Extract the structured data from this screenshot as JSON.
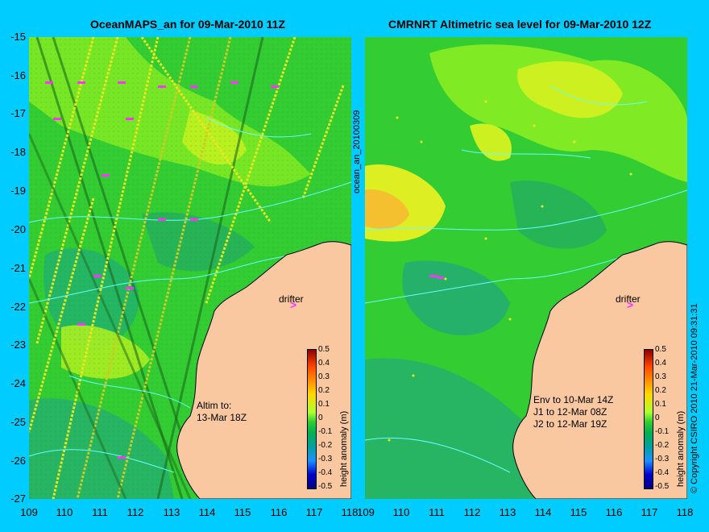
{
  "left_title": "OceanMAPS_an for 09-Mar-2010 11Z",
  "right_title": "CMRNRT Altimetric sea level  for 09-Mar-2010 12Z",
  "y_ticks": [
    "-15",
    "-16",
    "-17",
    "-18",
    "-19",
    "-20",
    "-21",
    "-22",
    "-23",
    "-24",
    "-25",
    "-26",
    "-27"
  ],
  "x_ticks_left": [
    "109",
    "110",
    "111",
    "112",
    "113",
    "114",
    "115",
    "116",
    "117",
    "118"
  ],
  "x_ticks_right": [
    "109",
    "110",
    "111",
    "112",
    "113",
    "114",
    "115",
    "116",
    "117",
    "118"
  ],
  "side_label": "ocean_an_20100309",
  "drifter_label": "drifter",
  "drifter_symbol": ">",
  "left_note": [
    "Altim to:",
    "13-Mar 18Z"
  ],
  "right_note": [
    "Env to 10-Mar 14Z",
    "J1 to 12-Mar 08Z",
    "J2 to 12-Mar 19Z"
  ],
  "colorbar_ticks": [
    "0.5",
    "0.4",
    "0.3",
    "0.2",
    "0.1",
    "0",
    "-0.1",
    "-0.2",
    "-0.3",
    "-0.4",
    "-0.5"
  ],
  "colorbar_title": "height anomaly (m)",
  "copyright": "© Copyright CSIRO 2010   21-Mar-2010 09:31:31",
  "colors": {
    "background": "#00ccff",
    "land": "#f9c8a0",
    "ocean_green": "#33cc33",
    "contour": "#66ffff",
    "drifter": "#ff33ff"
  }
}
